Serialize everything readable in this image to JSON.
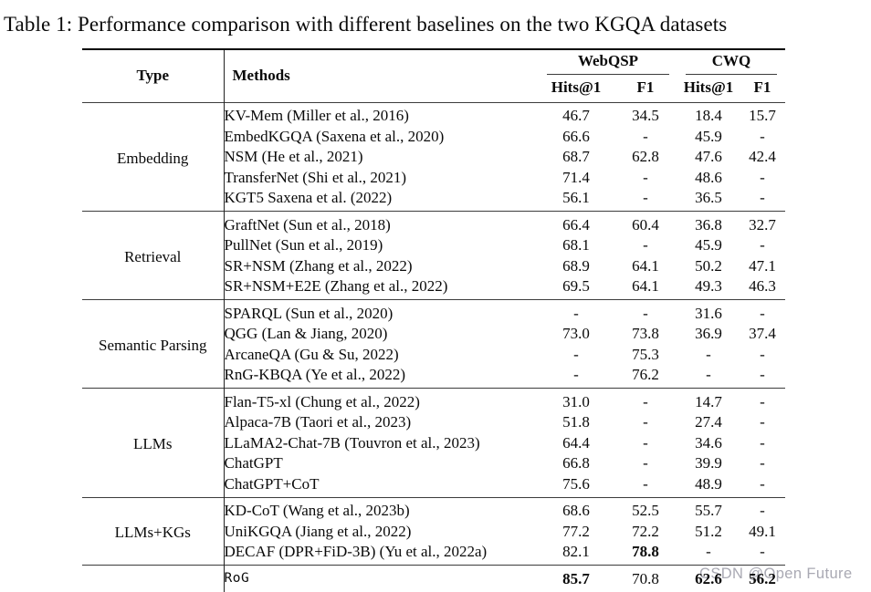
{
  "title": "Table 1: Performance comparison with different baselines on the two KGQA datasets",
  "watermark": "CSDN @Open Future",
  "colors": {
    "rule_heavy": "#000000",
    "rule_light": "#3c3c3c",
    "text": "#0a0a0a",
    "watermark": "#a9a9b3"
  },
  "table": {
    "headers": {
      "type": "Type",
      "methods": "Methods",
      "webqsp": "WebQSP",
      "cwq": "CWQ",
      "hits": "Hits@1",
      "f1": "F1"
    },
    "sections": [
      {
        "type": "Embedding",
        "rows": [
          {
            "method": "KV-Mem (Miller et al., 2016)",
            "values": [
              "46.7",
              "34.5",
              "18.4",
              "15.7"
            ]
          },
          {
            "method": "EmbedKGQA (Saxena et al., 2020)",
            "values": [
              "66.6",
              "-",
              "45.9",
              "-"
            ]
          },
          {
            "method": "NSM (He et al., 2021)",
            "values": [
              "68.7",
              "62.8",
              "47.6",
              "42.4"
            ]
          },
          {
            "method": "TransferNet (Shi et al., 2021)",
            "values": [
              "71.4",
              "-",
              "48.6",
              "-"
            ]
          },
          {
            "method": "KGT5 Saxena et al. (2022)",
            "values": [
              "56.1",
              "-",
              "36.5",
              "-"
            ]
          }
        ]
      },
      {
        "type": "Retrieval",
        "rows": [
          {
            "method": "GraftNet (Sun et al., 2018)",
            "values": [
              "66.4",
              "60.4",
              "36.8",
              "32.7"
            ]
          },
          {
            "method": "PullNet (Sun et al., 2019)",
            "values": [
              "68.1",
              "-",
              "45.9",
              "-"
            ]
          },
          {
            "method": "SR+NSM (Zhang et al., 2022)",
            "values": [
              "68.9",
              "64.1",
              "50.2",
              "47.1"
            ]
          },
          {
            "method": "SR+NSM+E2E (Zhang et al., 2022)",
            "values": [
              "69.5",
              "64.1",
              "49.3",
              "46.3"
            ]
          }
        ]
      },
      {
        "type": "Semantic Parsing",
        "rows": [
          {
            "method": "SPARQL (Sun et al., 2020)",
            "values": [
              "-",
              "-",
              "31.6",
              "-"
            ]
          },
          {
            "method": "QGG (Lan & Jiang, 2020)",
            "values": [
              "73.0",
              "73.8",
              "36.9",
              "37.4"
            ]
          },
          {
            "method": "ArcaneQA (Gu & Su, 2022)",
            "values": [
              "-",
              "75.3",
              "-",
              "-"
            ]
          },
          {
            "method": "RnG-KBQA (Ye et al., 2022)",
            "values": [
              "-",
              "76.2",
              "-",
              "-"
            ]
          }
        ]
      },
      {
        "type": "LLMs",
        "rows": [
          {
            "method": "Flan-T5-xl (Chung et al., 2022)",
            "values": [
              "31.0",
              "-",
              "14.7",
              "-"
            ]
          },
          {
            "method": "Alpaca-7B (Taori et al., 2023)",
            "values": [
              "51.8",
              "-",
              "27.4",
              "-"
            ]
          },
          {
            "method": "LLaMA2-Chat-7B (Touvron et al., 2023)",
            "values": [
              "64.4",
              "-",
              "34.6",
              "-"
            ]
          },
          {
            "method": "ChatGPT",
            "values": [
              "66.8",
              "-",
              "39.9",
              "-"
            ]
          },
          {
            "method": "ChatGPT+CoT",
            "values": [
              "75.6",
              "-",
              "48.9",
              "-"
            ]
          }
        ]
      },
      {
        "type": "LLMs+KGs",
        "rows": [
          {
            "method": "KD-CoT (Wang et al., 2023b)",
            "values": [
              "68.6",
              "52.5",
              "55.7",
              "-"
            ]
          },
          {
            "method": "UniKGQA (Jiang et al., 2022)",
            "values": [
              "77.2",
              "72.2",
              "51.2",
              "49.1"
            ]
          },
          {
            "method": "DECAF (DPR+FiD-3B) (Yu et al., 2022a)",
            "values": [
              "82.1",
              "78.8",
              "-",
              "-"
            ],
            "bold": [
              1
            ]
          }
        ]
      },
      {
        "type": "",
        "rog": true,
        "rows": [
          {
            "method": "RoG",
            "mono": true,
            "values": [
              "85.7",
              "70.8",
              "62.6",
              "56.2"
            ],
            "bold": [
              0,
              2,
              3
            ]
          }
        ]
      }
    ]
  }
}
